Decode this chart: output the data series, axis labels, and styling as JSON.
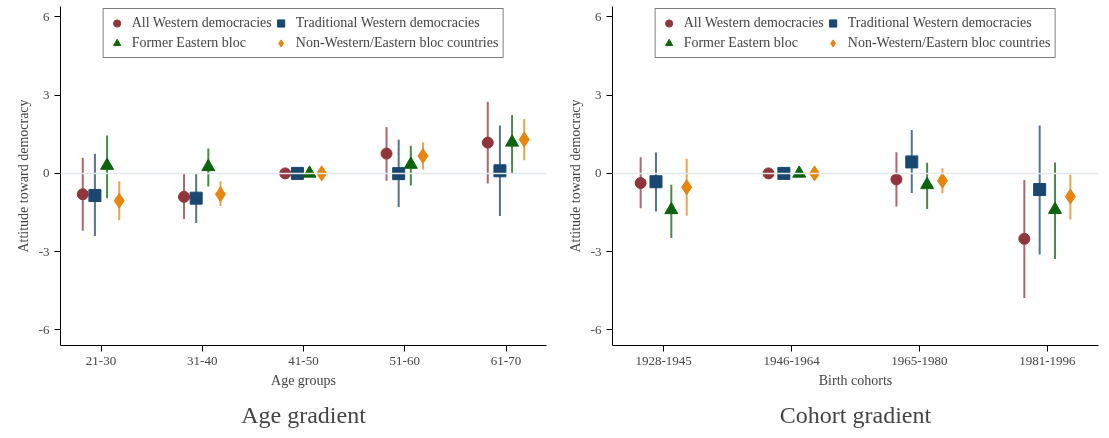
{
  "chart_data": [
    {
      "type": "scatter",
      "title": "Age gradient",
      "xlabel": "Age groups",
      "ylabel": "Attitude toward democracy",
      "categories": [
        "21-30",
        "31-40",
        "41-50",
        "51-60",
        "61-70"
      ],
      "ylim": [
        -6.6,
        6.4
      ],
      "yticks": [
        -6,
        -3,
        0,
        3,
        6
      ],
      "grid": false,
      "legend": "top",
      "ref_lines": [
        {
          "axis": "y",
          "value": 0,
          "color": "#e3e8ea"
        }
      ],
      "series": [
        {
          "name": "All Western democracies",
          "color": "#8f353b",
          "marker": "circle",
          "values": [
            -0.8,
            -0.9,
            0,
            0.76,
            1.18
          ],
          "errors": [
            [
              -2.2,
              0.6
            ],
            [
              -1.75,
              0
            ],
            null,
            [
              -0.28,
              1.78
            ],
            [
              -0.39,
              2.75
            ]
          ]
        },
        {
          "name": "Traditional Western democracies",
          "color": "#1a476f",
          "marker": "square",
          "values": [
            -0.85,
            -0.95,
            0,
            -0.01,
            0.1
          ],
          "errors": [
            [
              -2.4,
              0.75
            ],
            [
              -1.9,
              0
            ],
            null,
            [
              -1.29,
              1.29
            ],
            [
              -1.63,
              1.84
            ]
          ]
        },
        {
          "name": "Former Eastern bloc",
          "color": "#0b640b",
          "marker": "triangle",
          "values": [
            0.3,
            0.25,
            0,
            0.34,
            1.19
          ],
          "errors": [
            [
              -0.95,
              1.45
            ],
            [
              -0.5,
              0.95
            ],
            null,
            [
              -0.46,
              1.06
            ],
            [
              0.01,
              2.24
            ]
          ]
        },
        {
          "name": "Non-Western/Eastern bloc countries",
          "color": "#e8850c",
          "marker": "diamond",
          "values": [
            -1.05,
            -0.8,
            0,
            0.67,
            1.3
          ],
          "errors": [
            [
              -1.8,
              -0.3
            ],
            [
              -1.25,
              -0.3
            ],
            null,
            [
              0.15,
              1.19
            ],
            [
              0.5,
              2.09
            ]
          ]
        }
      ]
    },
    {
      "type": "scatter",
      "title": "Cohort gradient",
      "xlabel": "Birth cohorts",
      "ylabel": "Attitude toward democracy",
      "categories": [
        "1928-1945",
        "1946-1964",
        "1965-1980",
        "1981-1996"
      ],
      "ylim": [
        -6.6,
        6.4
      ],
      "yticks": [
        -6,
        -3,
        0,
        3,
        6
      ],
      "grid": false,
      "legend": "top",
      "ref_lines": [
        {
          "axis": "y",
          "value": 0,
          "color": "#e3e8ea"
        }
      ],
      "series": [
        {
          "name": "All Western democracies",
          "color": "#8f353b",
          "marker": "circle",
          "values": [
            -0.37,
            0,
            -0.23,
            -2.51
          ],
          "errors": [
            [
              -1.34,
              0.62
            ],
            null,
            [
              -1.27,
              0.81
            ],
            [
              -4.78,
              -0.25
            ]
          ]
        },
        {
          "name": "Traditional Western democracies",
          "color": "#1a476f",
          "marker": "square",
          "values": [
            -0.32,
            0,
            0.44,
            -0.62
          ],
          "errors": [
            [
              -1.46,
              0.8
            ],
            null,
            [
              -0.75,
              1.66
            ],
            [
              -3.11,
              1.84
            ]
          ]
        },
        {
          "name": "Former Eastern bloc",
          "color": "#0b640b",
          "marker": "triangle",
          "values": [
            -1.4,
            0,
            -0.44,
            -1.39
          ],
          "errors": [
            [
              -2.48,
              -0.44
            ],
            null,
            [
              -1.37,
              0.41
            ],
            [
              -3.28,
              0.42
            ]
          ]
        },
        {
          "name": "Non-Western/Eastern bloc countries",
          "color": "#e8850c",
          "marker": "diamond",
          "values": [
            -0.53,
            0,
            -0.28,
            -0.89
          ],
          "errors": [
            [
              -1.62,
              0.56
            ],
            null,
            [
              -0.76,
              0.2
            ],
            [
              -1.77,
              -0.05
            ]
          ]
        }
      ]
    }
  ]
}
